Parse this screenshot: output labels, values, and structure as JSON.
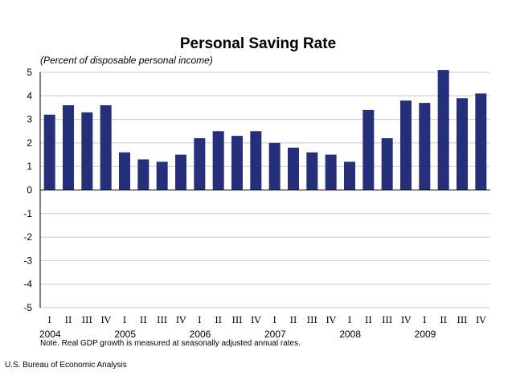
{
  "chart_data": {
    "type": "bar",
    "title": "Personal Saving Rate",
    "subtitle": "(Percent of disposable personal income)",
    "xlabel": "",
    "ylabel": "",
    "ylim": [
      -5,
      5
    ],
    "yticks": [
      "5",
      "4",
      "3",
      "2",
      "1",
      "0",
      "-1",
      "-2",
      "-3",
      "-4",
      "-5"
    ],
    "ytick_values": [
      5,
      4,
      3,
      2,
      1,
      0,
      -1,
      -2,
      -3,
      -4,
      -5
    ],
    "grid": true,
    "legend": "none",
    "bar_color": "#26307a",
    "categories": [
      "I",
      "II",
      "III",
      "IV",
      "I",
      "II",
      "III",
      "IV",
      "I",
      "II",
      "III",
      "IV",
      "I",
      "II",
      "III",
      "IV",
      "I",
      "II",
      "III",
      "IV",
      "I",
      "II",
      "III",
      "IV"
    ],
    "years": [
      "2004",
      "2005",
      "2006",
      "2007",
      "2008",
      "2009"
    ],
    "values": [
      3.2,
      3.6,
      3.3,
      3.6,
      1.6,
      1.3,
      1.2,
      1.5,
      2.2,
      2.5,
      2.3,
      2.5,
      2.0,
      1.8,
      1.6,
      1.5,
      1.2,
      3.4,
      2.2,
      3.8,
      3.7,
      5.1,
      3.9,
      4.1
    ]
  },
  "note": "Note.  Real GDP growth is measured at seasonally adjusted annual rates.",
  "source": "U.S. Bureau of Economic Analysis"
}
